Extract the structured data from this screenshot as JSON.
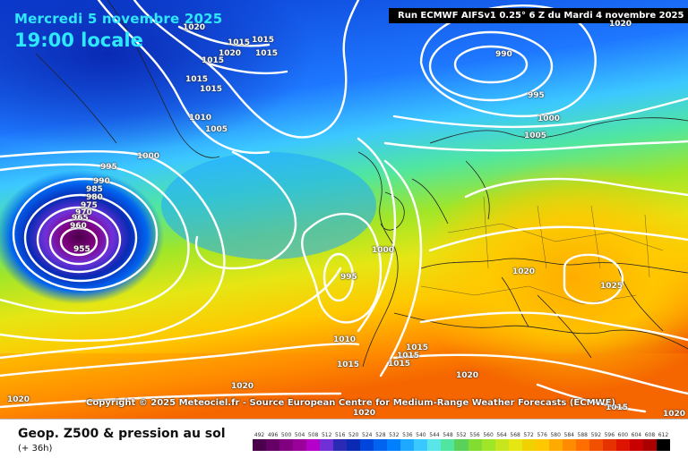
{
  "header": {
    "date": "Mercredi 5 novembre 2025",
    "local_time": "19:00 locale",
    "run_info": "Run ECMWF AIFSv1 0.25° 6 Z du Mardi 4 novembre 2025"
  },
  "copyright": "Copyright © 2025 Meteociel.fr - Source European Centre for Medium-Range Weather Forecasts (ECMWF)",
  "footer": {
    "parameter": "Geop. Z500 & pression au sol",
    "lead_time": "(+ 36h)"
  },
  "legend": {
    "values": [
      "492",
      "496",
      "500",
      "504",
      "508",
      "512",
      "516",
      "520",
      "524",
      "528",
      "532",
      "536",
      "540",
      "544",
      "548",
      "552",
      "556",
      "560",
      "564",
      "568",
      "572",
      "576",
      "580",
      "584",
      "588",
      "592",
      "596",
      "600",
      "604",
      "608",
      "612"
    ],
    "colors": [
      "#4a004a",
      "#650065",
      "#800080",
      "#9a009a",
      "#b400c8",
      "#7030d8",
      "#2a2ab4",
      "#0a2ab4",
      "#0046dc",
      "#0064f0",
      "#0080ff",
      "#1ea8ff",
      "#39c8ff",
      "#5ae6e6",
      "#50e6a0",
      "#5ad25a",
      "#82dc32",
      "#a0e628",
      "#c8e61e",
      "#e6e614",
      "#f0d200",
      "#ffc800",
      "#ffaa00",
      "#ff8c00",
      "#ff6e00",
      "#f05000",
      "#e63200",
      "#dc1400",
      "#c80000",
      "#aa0000",
      "#000000"
    ]
  },
  "isobar_labels": [
    "1020",
    "1015",
    "1015",
    "1015",
    "1020",
    "1015",
    "1015",
    "1015",
    "1010",
    "1005",
    "1000",
    "995",
    "990",
    "985",
    "980",
    "975",
    "970",
    "965",
    "960",
    "955",
    "990",
    "995",
    "1000",
    "1005",
    "1000",
    "995",
    "1020",
    "1025",
    "1010",
    "1015",
    "1015",
    "1015",
    "1020",
    "1020",
    "1020",
    "1020",
    "1015",
    "1020",
    "1020",
    "1015"
  ]
}
